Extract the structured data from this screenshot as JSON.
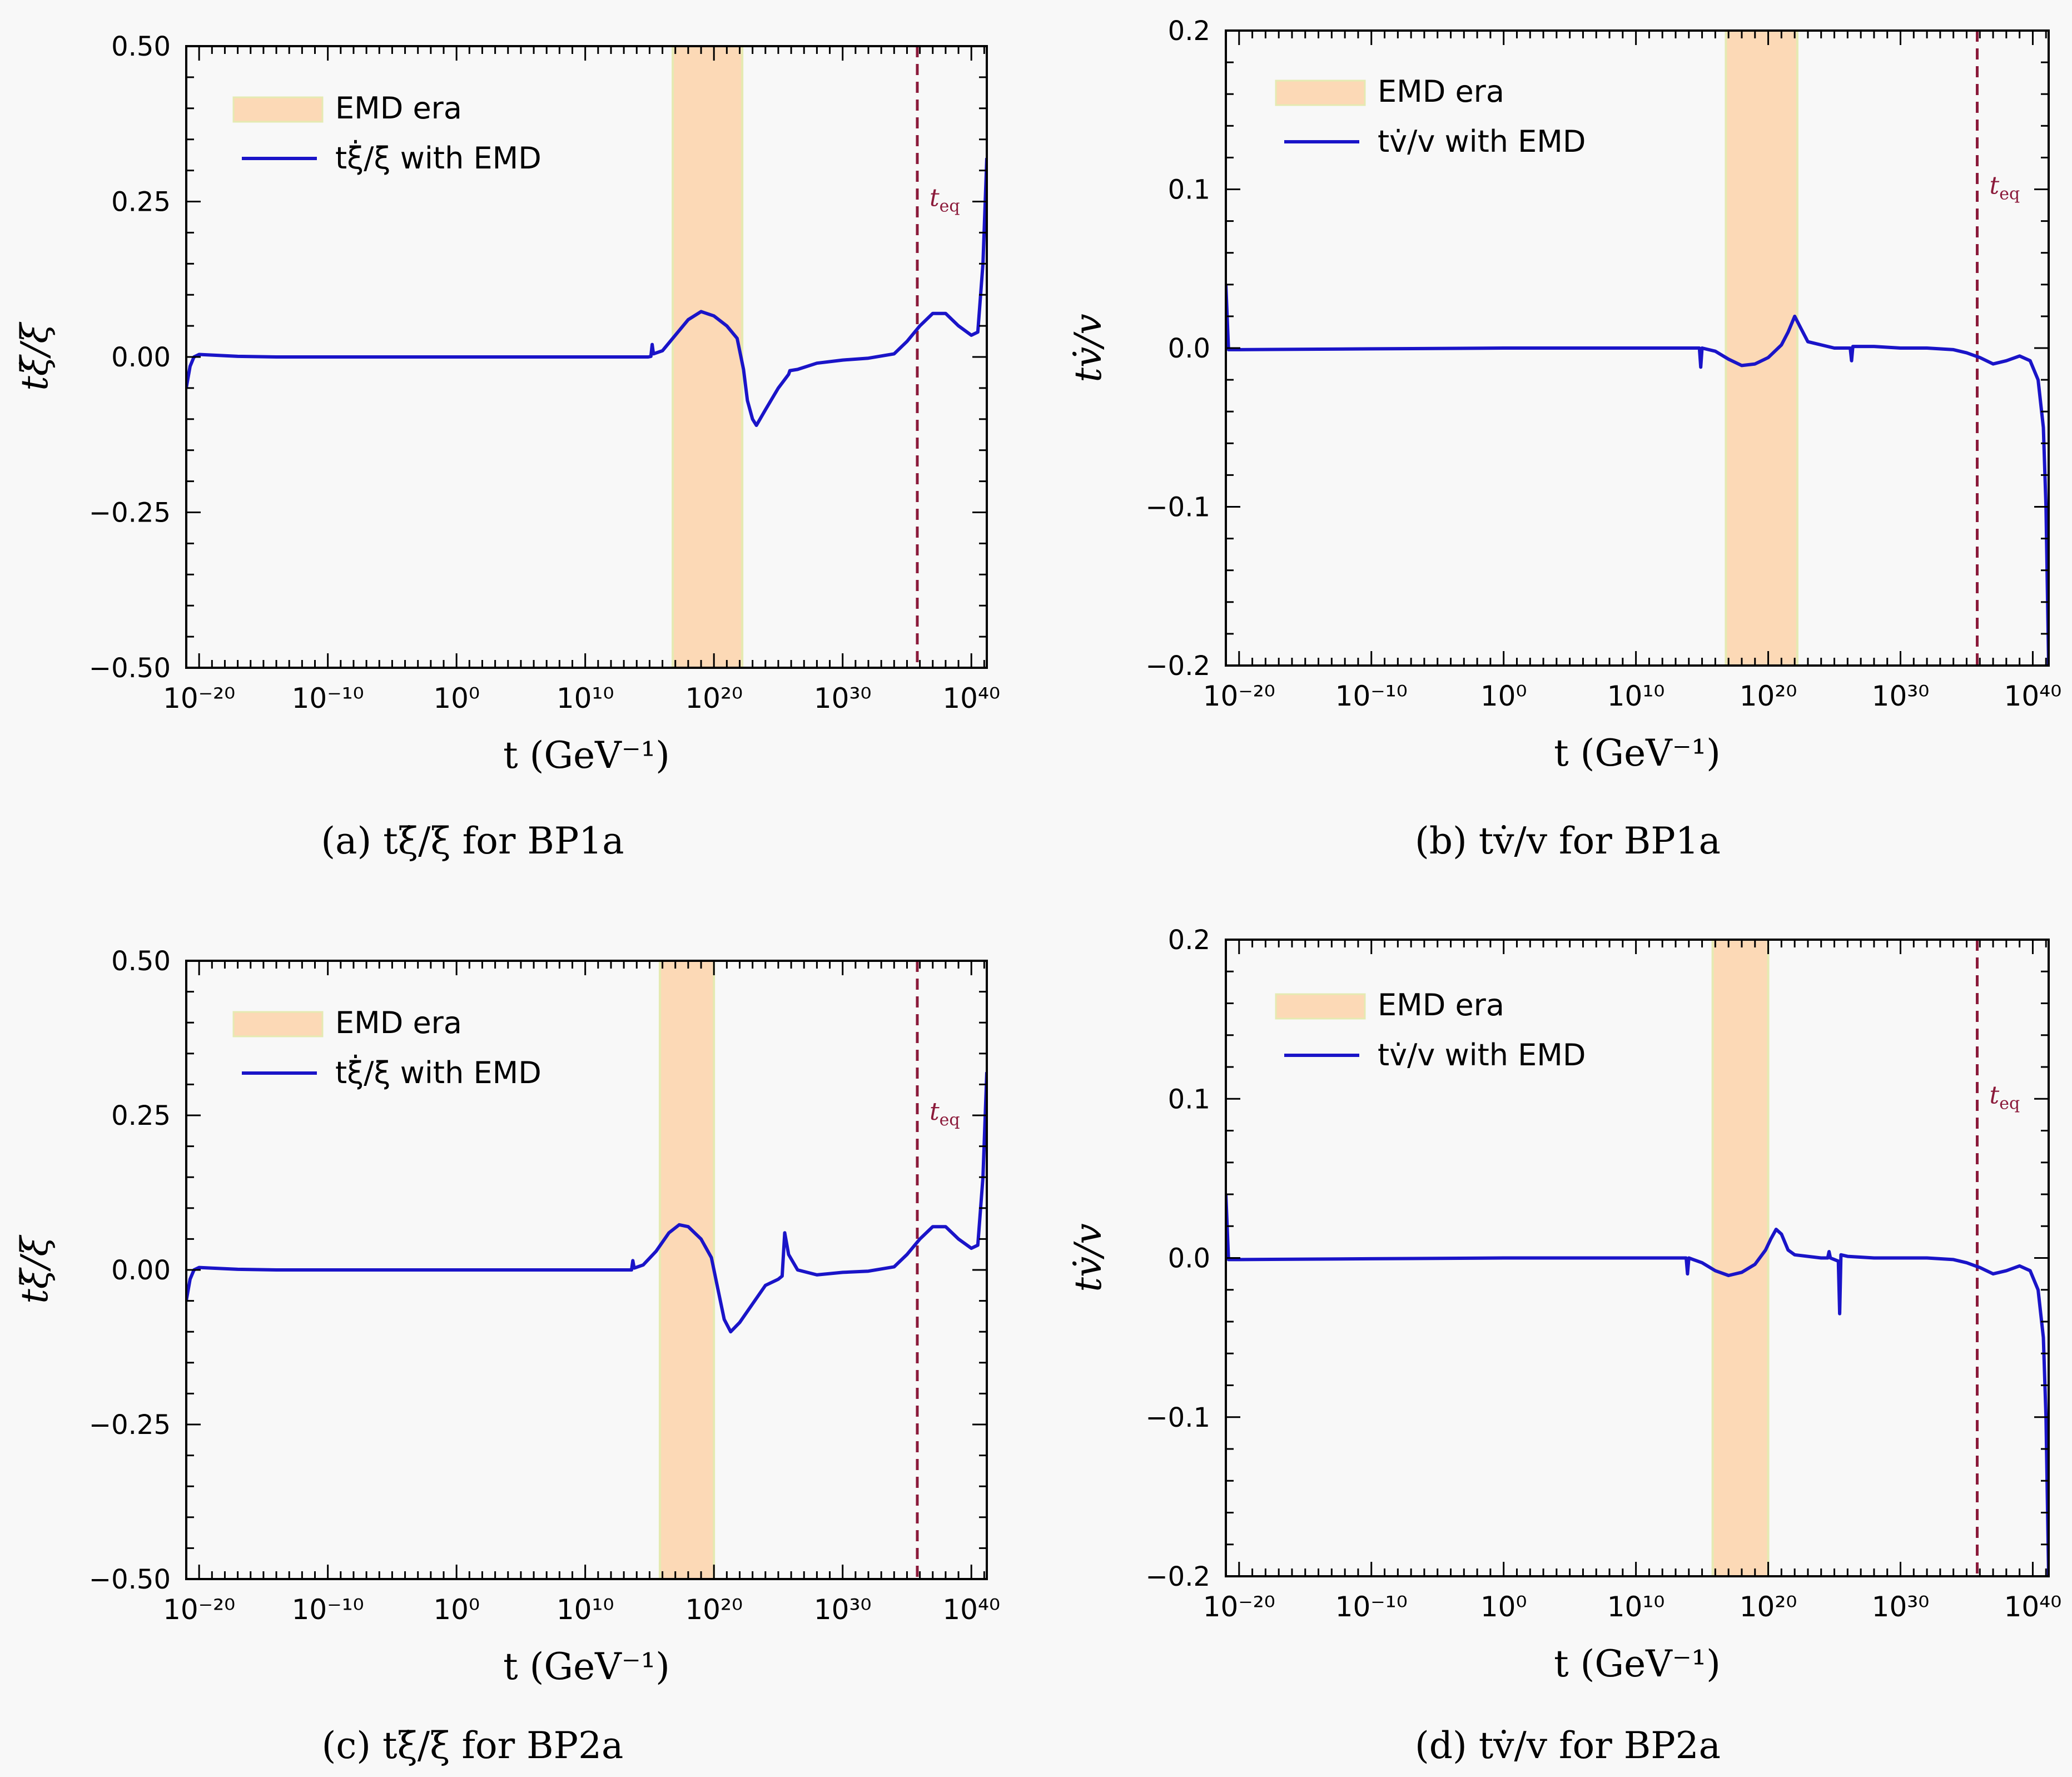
{
  "figure": {
    "background": "#f8f8f8",
    "colors": {
      "curve": "#1a14c8",
      "band": "#fcd9b6",
      "band_edge": "#e5eab2",
      "eq_line": "#8b1a3a",
      "axis": "#000000"
    }
  },
  "chart_data": [
    {
      "type": "line",
      "subcaption": "(a) tξ̇/ξ for BP1a",
      "ylabel": "tξ̇/ξ",
      "xlabel": "t (GeV⁻¹)",
      "x_scale": "log",
      "xlim_exp": [
        -21,
        41.2
      ],
      "ylim": [
        -0.5,
        0.5
      ],
      "x_ticks": [
        {
          "exp": -20,
          "label": "10⁻²⁰"
        },
        {
          "exp": -10,
          "label": "10⁻¹⁰"
        },
        {
          "exp": 0,
          "label": "10⁰"
        },
        {
          "exp": 10,
          "label": "10¹⁰"
        },
        {
          "exp": 20,
          "label": "10²⁰"
        },
        {
          "exp": 30,
          "label": "10³⁰"
        },
        {
          "exp": 40,
          "label": "10⁴⁰"
        }
      ],
      "y_ticks": [
        {
          "v": -0.5,
          "label": "−0.50"
        },
        {
          "v": -0.25,
          "label": "−0.25"
        },
        {
          "v": 0.0,
          "label": "0.00"
        },
        {
          "v": 0.25,
          "label": "0.25"
        },
        {
          "v": 0.5,
          "label": "0.50"
        }
      ],
      "y_minor_step": 0.05,
      "emd_band_exp": [
        16.8,
        22.2
      ],
      "t_eq_exp": 35.8,
      "t_eq_label": "t_eq",
      "t_eq_label_y": 0.25,
      "legend": {
        "position": "upper-left",
        "band_label": "EMD era",
        "line_label": "tξ̇/ξ with EMD"
      },
      "series": [
        {
          "name": "tξ̇/ξ with EMD",
          "points": [
            [
              -21,
              -0.05
            ],
            [
              -20.7,
              -0.015
            ],
            [
              -20.4,
              0.0
            ],
            [
              -20,
              0.004
            ],
            [
              -19,
              0.003
            ],
            [
              -17,
              0.001
            ],
            [
              -14,
              0.0
            ],
            [
              -5,
              0.0
            ],
            [
              5,
              0.0
            ],
            [
              13,
              0.0
            ],
            [
              14.9,
              0.0
            ],
            [
              15.1,
              0.001
            ],
            [
              15.2,
              0.02
            ],
            [
              15.3,
              0.005
            ],
            [
              16,
              0.01
            ],
            [
              17,
              0.035
            ],
            [
              18,
              0.06
            ],
            [
              19,
              0.073
            ],
            [
              20,
              0.066
            ],
            [
              21,
              0.05
            ],
            [
              21.8,
              0.03
            ],
            [
              22.3,
              -0.02
            ],
            [
              22.6,
              -0.07
            ],
            [
              23,
              -0.1
            ],
            [
              23.3,
              -0.11
            ],
            [
              24,
              -0.085
            ],
            [
              25,
              -0.05
            ],
            [
              25.8,
              -0.028
            ],
            [
              25.9,
              -0.022
            ],
            [
              26.5,
              -0.02
            ],
            [
              28,
              -0.01
            ],
            [
              30,
              -0.005
            ],
            [
              32,
              -0.002
            ],
            [
              34,
              0.005
            ],
            [
              35,
              0.025
            ],
            [
              36,
              0.05
            ],
            [
              37,
              0.07
            ],
            [
              38,
              0.07
            ],
            [
              39,
              0.05
            ],
            [
              40,
              0.035
            ],
            [
              40.5,
              0.04
            ],
            [
              40.9,
              0.15
            ],
            [
              41.2,
              0.32
            ]
          ]
        }
      ]
    },
    {
      "type": "line",
      "subcaption": "(b) tv̇/v for BP1a",
      "ylabel": "tv̇/v",
      "xlabel": "t (GeV⁻¹)",
      "x_scale": "log",
      "xlim_exp": [
        -21,
        41.2
      ],
      "ylim": [
        -0.2,
        0.2
      ],
      "x_ticks": [
        {
          "exp": -20,
          "label": "10⁻²⁰"
        },
        {
          "exp": -10,
          "label": "10⁻¹⁰"
        },
        {
          "exp": 0,
          "label": "10⁰"
        },
        {
          "exp": 10,
          "label": "10¹⁰"
        },
        {
          "exp": 20,
          "label": "10²⁰"
        },
        {
          "exp": 30,
          "label": "10³⁰"
        },
        {
          "exp": 40,
          "label": "10⁴⁰"
        }
      ],
      "y_ticks": [
        {
          "v": -0.2,
          "label": "−0.2"
        },
        {
          "v": -0.1,
          "label": "−0.1"
        },
        {
          "v": 0.0,
          "label": "0.0"
        },
        {
          "v": 0.1,
          "label": "0.1"
        },
        {
          "v": 0.2,
          "label": "0.2"
        }
      ],
      "y_minor_step": 0.02,
      "emd_band_exp": [
        16.8,
        22.2
      ],
      "t_eq_exp": 35.8,
      "t_eq_label": "t_eq",
      "t_eq_label_y": 0.1,
      "legend": {
        "position": "upper-left",
        "band_label": "EMD era",
        "line_label": "tv̇/v with EMD"
      },
      "series": [
        {
          "name": "tv̇/v with EMD",
          "points": [
            [
              -21,
              0.04
            ],
            [
              -20.8,
              -0.001
            ],
            [
              -20,
              -0.001
            ],
            [
              -10,
              -0.0005
            ],
            [
              0,
              0.0
            ],
            [
              14,
              0.0
            ],
            [
              14.8,
              0.0
            ],
            [
              14.9,
              -0.012
            ],
            [
              15,
              0.0
            ],
            [
              16,
              -0.002
            ],
            [
              17,
              -0.007
            ],
            [
              18,
              -0.011
            ],
            [
              19,
              -0.01
            ],
            [
              20,
              -0.006
            ],
            [
              21,
              0.002
            ],
            [
              21.5,
              0.01
            ],
            [
              22,
              0.02
            ],
            [
              22.5,
              0.012
            ],
            [
              23,
              0.004
            ],
            [
              25,
              0.0
            ],
            [
              26.2,
              0.0
            ],
            [
              26.3,
              -0.008
            ],
            [
              26.4,
              0.001
            ],
            [
              28,
              0.001
            ],
            [
              30,
              0.0
            ],
            [
              32,
              0.0
            ],
            [
              34,
              -0.001
            ],
            [
              35,
              -0.003
            ],
            [
              36,
              -0.006
            ],
            [
              37,
              -0.01
            ],
            [
              38,
              -0.008
            ],
            [
              39,
              -0.005
            ],
            [
              39.8,
              -0.008
            ],
            [
              40.4,
              -0.02
            ],
            [
              40.8,
              -0.05
            ],
            [
              41.0,
              -0.1
            ],
            [
              41.2,
              -0.2
            ]
          ]
        }
      ]
    },
    {
      "type": "line",
      "subcaption": "(c) tξ̇/ξ for BP2a",
      "ylabel": "tξ̇/ξ",
      "xlabel": "t (GeV⁻¹)",
      "x_scale": "log",
      "xlim_exp": [
        -21,
        41.2
      ],
      "ylim": [
        -0.5,
        0.5
      ],
      "x_ticks": [
        {
          "exp": -20,
          "label": "10⁻²⁰"
        },
        {
          "exp": -10,
          "label": "10⁻¹⁰"
        },
        {
          "exp": 0,
          "label": "10⁰"
        },
        {
          "exp": 10,
          "label": "10¹⁰"
        },
        {
          "exp": 20,
          "label": "10²⁰"
        },
        {
          "exp": 30,
          "label": "10³⁰"
        },
        {
          "exp": 40,
          "label": "10⁴⁰"
        }
      ],
      "y_ticks": [
        {
          "v": -0.5,
          "label": "−0.50"
        },
        {
          "v": -0.25,
          "label": "−0.25"
        },
        {
          "v": 0.0,
          "label": "0.00"
        },
        {
          "v": 0.25,
          "label": "0.25"
        },
        {
          "v": 0.5,
          "label": "0.50"
        }
      ],
      "y_minor_step": 0.05,
      "emd_band_exp": [
        15.8,
        20.0
      ],
      "t_eq_exp": 35.8,
      "t_eq_label": "t_eq",
      "t_eq_label_y": 0.25,
      "legend": {
        "position": "upper-left",
        "band_label": "EMD era",
        "line_label": "tξ̇/ξ with EMD"
      },
      "series": [
        {
          "name": "tξ̇/ξ with EMD",
          "points": [
            [
              -21,
              -0.05
            ],
            [
              -20.7,
              -0.015
            ],
            [
              -20.4,
              0.0
            ],
            [
              -20,
              0.004
            ],
            [
              -19,
              0.003
            ],
            [
              -17,
              0.001
            ],
            [
              -14,
              0.0
            ],
            [
              -5,
              0.0
            ],
            [
              5,
              0.0
            ],
            [
              12.5,
              0.0
            ],
            [
              13.6,
              0.0
            ],
            [
              13.7,
              0.015
            ],
            [
              13.8,
              0.003
            ],
            [
              14.5,
              0.008
            ],
            [
              15.5,
              0.03
            ],
            [
              16.5,
              0.06
            ],
            [
              17.3,
              0.073
            ],
            [
              18,
              0.07
            ],
            [
              19,
              0.05
            ],
            [
              19.8,
              0.02
            ],
            [
              20.3,
              -0.03
            ],
            [
              20.8,
              -0.08
            ],
            [
              21.3,
              -0.1
            ],
            [
              22,
              -0.085
            ],
            [
              23,
              -0.055
            ],
            [
              24,
              -0.025
            ],
            [
              25,
              -0.015
            ],
            [
              25.3,
              -0.01
            ],
            [
              25.5,
              0.06
            ],
            [
              25.8,
              0.025
            ],
            [
              26.5,
              0.0
            ],
            [
              28,
              -0.008
            ],
            [
              30,
              -0.004
            ],
            [
              32,
              -0.002
            ],
            [
              34,
              0.005
            ],
            [
              35,
              0.025
            ],
            [
              36,
              0.05
            ],
            [
              37,
              0.07
            ],
            [
              38,
              0.07
            ],
            [
              39,
              0.05
            ],
            [
              40,
              0.035
            ],
            [
              40.5,
              0.04
            ],
            [
              40.9,
              0.15
            ],
            [
              41.2,
              0.32
            ]
          ]
        }
      ]
    },
    {
      "type": "line",
      "subcaption": "(d) tv̇/v for BP2a",
      "ylabel": "tv̇/v",
      "xlabel": "t (GeV⁻¹)",
      "x_scale": "log",
      "xlim_exp": [
        -21,
        41.2
      ],
      "ylim": [
        -0.2,
        0.2
      ],
      "x_ticks": [
        {
          "exp": -20,
          "label": "10⁻²⁰"
        },
        {
          "exp": -10,
          "label": "10⁻¹⁰"
        },
        {
          "exp": 0,
          "label": "10⁰"
        },
        {
          "exp": 10,
          "label": "10¹⁰"
        },
        {
          "exp": 20,
          "label": "10²⁰"
        },
        {
          "exp": 30,
          "label": "10³⁰"
        },
        {
          "exp": 40,
          "label": "10⁴⁰"
        }
      ],
      "y_ticks": [
        {
          "v": -0.2,
          "label": "−0.2"
        },
        {
          "v": -0.1,
          "label": "−0.1"
        },
        {
          "v": 0.0,
          "label": "0.0"
        },
        {
          "v": 0.1,
          "label": "0.1"
        },
        {
          "v": 0.2,
          "label": "0.2"
        }
      ],
      "y_minor_step": 0.02,
      "emd_band_exp": [
        15.8,
        20.0
      ],
      "t_eq_exp": 35.8,
      "t_eq_label": "t_eq",
      "t_eq_label_y": 0.1,
      "legend": {
        "position": "upper-left",
        "band_label": "EMD era",
        "line_label": "tv̇/v with EMD"
      },
      "series": [
        {
          "name": "tv̇/v with EMD",
          "points": [
            [
              -21,
              0.04
            ],
            [
              -20.8,
              -0.001
            ],
            [
              -20,
              -0.001
            ],
            [
              -10,
              -0.0005
            ],
            [
              0,
              0.0
            ],
            [
              13,
              0.0
            ],
            [
              13.8,
              0.0
            ],
            [
              13.9,
              -0.01
            ],
            [
              14,
              0.0
            ],
            [
              15,
              -0.003
            ],
            [
              16,
              -0.008
            ],
            [
              17,
              -0.011
            ],
            [
              18,
              -0.009
            ],
            [
              19,
              -0.004
            ],
            [
              19.8,
              0.005
            ],
            [
              20.2,
              0.012
            ],
            [
              20.6,
              0.018
            ],
            [
              21,
              0.015
            ],
            [
              21.5,
              0.005
            ],
            [
              22,
              0.002
            ],
            [
              24,
              0.0
            ],
            [
              24.5,
              0.0
            ],
            [
              24.6,
              0.004
            ],
            [
              24.7,
              0.0
            ],
            [
              25.3,
              -0.002
            ],
            [
              25.4,
              -0.035
            ],
            [
              25.5,
              0.002
            ],
            [
              26,
              0.001
            ],
            [
              28,
              0.0
            ],
            [
              30,
              0.0
            ],
            [
              32,
              0.0
            ],
            [
              34,
              -0.001
            ],
            [
              35,
              -0.003
            ],
            [
              36,
              -0.006
            ],
            [
              37,
              -0.01
            ],
            [
              38,
              -0.008
            ],
            [
              39,
              -0.005
            ],
            [
              39.8,
              -0.008
            ],
            [
              40.4,
              -0.02
            ],
            [
              40.8,
              -0.05
            ],
            [
              41.0,
              -0.1
            ],
            [
              41.2,
              -0.2
            ]
          ]
        }
      ]
    }
  ]
}
